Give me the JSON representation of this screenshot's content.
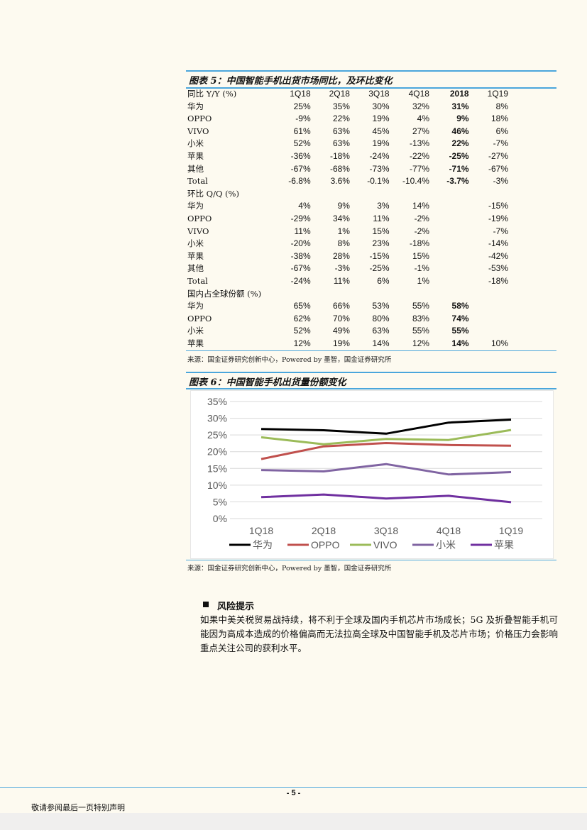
{
  "table5": {
    "title": "图表 5：中国智能手机出货市场同比，及环比变化",
    "header_yy": "同比 Y/Y (%)",
    "columns": [
      "1Q18",
      "2Q18",
      "3Q18",
      "4Q18",
      "2018",
      "1Q19"
    ],
    "yy_rows": [
      {
        "label": "华为",
        "cells": [
          "25%",
          "35%",
          "30%",
          "32%",
          "31%",
          "8%"
        ]
      },
      {
        "label": "OPPO",
        "cells": [
          "-9%",
          "22%",
          "19%",
          "4%",
          "9%",
          "18%"
        ]
      },
      {
        "label": "VIVO",
        "cells": [
          "61%",
          "63%",
          "45%",
          "27%",
          "46%",
          "6%"
        ]
      },
      {
        "label": "小米",
        "cells": [
          "52%",
          "63%",
          "19%",
          "-13%",
          "22%",
          "-7%"
        ]
      },
      {
        "label": "苹果",
        "cells": [
          "-36%",
          "-18%",
          "-24%",
          "-22%",
          "-25%",
          "-27%"
        ]
      },
      {
        "label": "其他",
        "cells": [
          "-67%",
          "-68%",
          "-73%",
          "-77%",
          "-71%",
          "-67%"
        ]
      },
      {
        "label": "Total",
        "cells": [
          "-6.8%",
          "3.6%",
          "-0.1%",
          "-10.4%",
          "-3.7%",
          "-3%"
        ]
      }
    ],
    "header_qq": "环比 Q/Q (%)",
    "qq_rows": [
      {
        "label": "华为",
        "cells": [
          "4%",
          "9%",
          "3%",
          "14%",
          "",
          "-15%"
        ]
      },
      {
        "label": "OPPO",
        "cells": [
          "-29%",
          "34%",
          "11%",
          "-2%",
          "",
          "-19%"
        ]
      },
      {
        "label": "VIVO",
        "cells": [
          "11%",
          "1%",
          "15%",
          "-2%",
          "",
          "-7%"
        ]
      },
      {
        "label": "小米",
        "cells": [
          "-20%",
          "8%",
          "23%",
          "-18%",
          "",
          "-14%"
        ]
      },
      {
        "label": "苹果",
        "cells": [
          "-38%",
          "28%",
          "-15%",
          "15%",
          "",
          "-42%"
        ]
      },
      {
        "label": "其他",
        "cells": [
          "-67%",
          "-3%",
          "-25%",
          "-1%",
          "",
          "-53%"
        ]
      },
      {
        "label": "Total",
        "cells": [
          "-24%",
          "11%",
          "6%",
          "1%",
          "",
          "-18%"
        ]
      }
    ],
    "header_share": "国内占全球份额 (%)",
    "share_rows": [
      {
        "label": "华为",
        "cells": [
          "65%",
          "66%",
          "53%",
          "55%",
          "58%",
          ""
        ]
      },
      {
        "label": "OPPO",
        "cells": [
          "62%",
          "70%",
          "80%",
          "83%",
          "74%",
          ""
        ]
      },
      {
        "label": "小米",
        "cells": [
          "52%",
          "49%",
          "63%",
          "55%",
          "55%",
          ""
        ]
      },
      {
        "label": "苹果",
        "cells": [
          "12%",
          "19%",
          "14%",
          "12%",
          "14%",
          "10%"
        ]
      }
    ],
    "source": "来源：国金证券研究创新中心，Powered by 墨智，国金证券研究所"
  },
  "chart6": {
    "title": "图表 6：中国智能手机出货量份额变化",
    "source": "来源：国金证券研究创新中心，Powered by 墨智，国金证券研究所"
  },
  "chart_data": {
    "type": "line",
    "categories": [
      "1Q18",
      "2Q18",
      "3Q18",
      "4Q18",
      "1Q19"
    ],
    "ylim": [
      0,
      35
    ],
    "yticks": [
      "0%",
      "5%",
      "10%",
      "15%",
      "20%",
      "25%",
      "30%",
      "35%"
    ],
    "grid": true,
    "legend_position": "bottom",
    "series": [
      {
        "name": "华为",
        "color": "#000000",
        "values": [
          26.8,
          26.4,
          25.4,
          28.7,
          29.6
        ]
      },
      {
        "name": "OPPO",
        "color": "#c0504d",
        "values": [
          17.8,
          21.6,
          22.6,
          22.0,
          21.8
        ]
      },
      {
        "name": "VIVO",
        "color": "#9bbb59",
        "values": [
          24.3,
          22.2,
          23.8,
          23.5,
          26.5
        ]
      },
      {
        "name": "小米",
        "color": "#8064a2",
        "values": [
          14.5,
          14.1,
          16.3,
          13.2,
          13.9
        ]
      },
      {
        "name": "苹果",
        "color": "#7030a0",
        "values": [
          6.4,
          7.2,
          6.0,
          6.8,
          4.9
        ]
      }
    ]
  },
  "risk": {
    "heading": "风险提示",
    "body": "如果中美关税贸易战持续，将不利于全球及国内手机芯片市场成长；5G 及折叠智能手机可能因为高成本造成的价格偏高而无法拉高全球及中国智能手机及芯片市场；价格压力会影响重点关注公司的获利水平。"
  },
  "footer": {
    "page": "- 5 -",
    "note": "敬请参阅最后一页特别声明"
  }
}
